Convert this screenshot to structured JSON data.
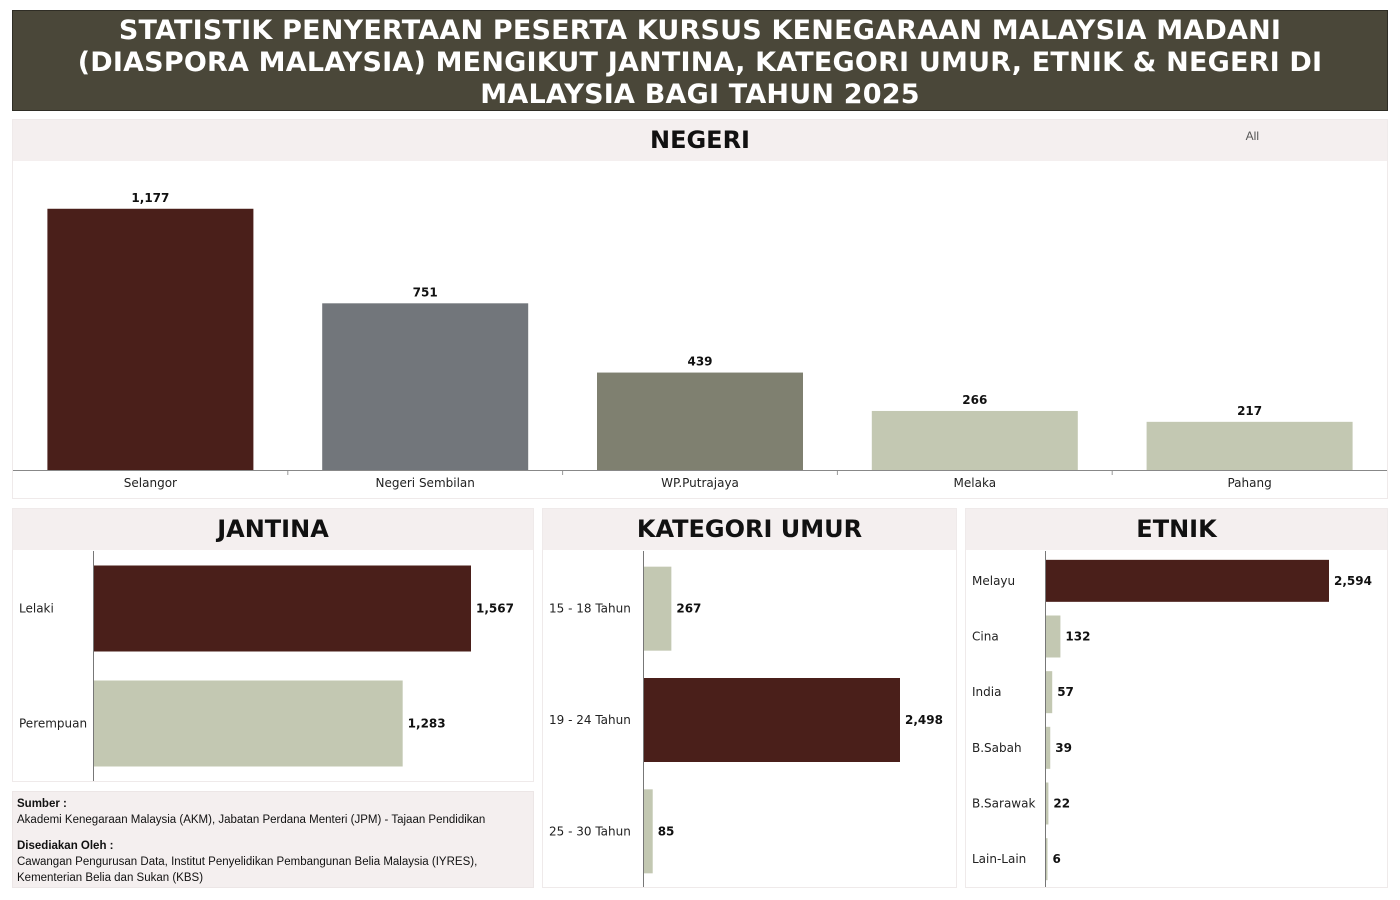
{
  "title": "STATISTIK PENYERTAAN PESERTA KURSUS KENEGARAAN MALAYSIA MADANI (DIASPORA MALAYSIA) MENGIKUT JANTINA, KATEGORI UMUR, ETNIK & NEGERI DI MALAYSIA BAGI TAHUN 2025",
  "negeri_panel": {
    "header": "NEGERI",
    "filter": "All"
  },
  "jantina_panel": {
    "header": "JANTINA"
  },
  "umur_panel": {
    "header": "KATEGORI UMUR"
  },
  "etnik_panel": {
    "header": "ETNIK"
  },
  "source": {
    "sumber_label": "Sumber :",
    "sumber_text": "Akademi Kenegaraan Malaysia (AKM), Jabatan Perdana Menteri (JPM)  - Tajaan Pendidikan",
    "disediakan_label": "Disediakan Oleh :",
    "disediakan_line1": "Cawangan Pengurusan Data, Institut Penyelidikan Pembangunan Belia Malaysia (IYRES),",
    "disediakan_line2": "Kementerian Belia dan Sukan (KBS)"
  },
  "colors": {
    "dark_red": "#4a1f1a",
    "grey": "#72767b",
    "olive_grey": "#7f8070",
    "sage": "#c3c8b2"
  },
  "chart_data": [
    {
      "id": "negeri",
      "type": "bar",
      "orientation": "vertical",
      "title": "NEGERI",
      "categories": [
        "Selangor",
        "Negeri Sembilan",
        "WP.Putrajaya",
        "Melaka",
        "Pahang"
      ],
      "values": [
        1177,
        751,
        439,
        266,
        217
      ],
      "value_labels": [
        "1,177",
        "751",
        "439",
        "266",
        "217"
      ],
      "bar_colors": [
        "#4a1f1a",
        "#72767b",
        "#7f8070",
        "#c3c8b2",
        "#c3c8b2"
      ],
      "ylim": [
        0,
        1230
      ]
    },
    {
      "id": "jantina",
      "type": "bar",
      "orientation": "horizontal",
      "title": "JANTINA",
      "categories": [
        "Lelaki",
        "Perempuan"
      ],
      "values": [
        1567,
        1283
      ],
      "value_labels": [
        "1,567",
        "1,283"
      ],
      "bar_colors": [
        "#4a1f1a",
        "#c3c8b2"
      ],
      "xlim": [
        0,
        1567
      ]
    },
    {
      "id": "umur",
      "type": "bar",
      "orientation": "horizontal",
      "title": "KATEGORI UMUR",
      "categories": [
        "15 - 18 Tahun",
        "19 - 24 Tahun",
        "25 - 30 Tahun"
      ],
      "values": [
        267,
        2498,
        85
      ],
      "value_labels": [
        "267",
        "2,498",
        "85"
      ],
      "bar_colors": [
        "#c3c8b2",
        "#4a1f1a",
        "#c3c8b2"
      ],
      "xlim": [
        0,
        2498
      ]
    },
    {
      "id": "etnik",
      "type": "bar",
      "orientation": "horizontal",
      "title": "ETNIK",
      "categories": [
        "Melayu",
        "Cina",
        "India",
        "B.Sabah",
        "B.Sarawak",
        "Lain-Lain"
      ],
      "values": [
        2594,
        132,
        57,
        39,
        22,
        6
      ],
      "value_labels": [
        "2,594",
        "132",
        "57",
        "39",
        "22",
        "6"
      ],
      "bar_colors": [
        "#4a1f1a",
        "#c3c8b2",
        "#c3c8b2",
        "#c3c8b2",
        "#c3c8b2",
        "#c3c8b2"
      ],
      "xlim": [
        0,
        2594
      ]
    }
  ]
}
